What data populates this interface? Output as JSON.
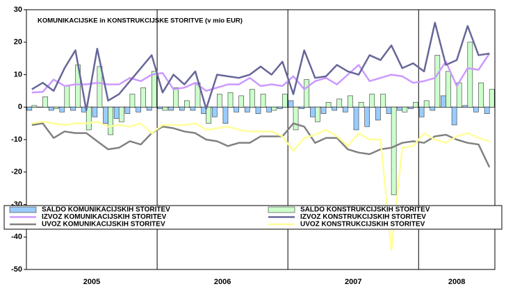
{
  "chart_data": {
    "type": "bar",
    "title": "KOMUNIKACIJSKE in KONSTRUKCIJSKE STORITVE (v mio EUR)",
    "year_labels": [
      "2005",
      "2006",
      "2007",
      "2008"
    ],
    "categories": [
      null,
      null,
      null,
      null,
      null,
      null,
      null,
      null,
      null,
      null,
      null,
      null,
      null,
      null,
      null,
      null,
      null,
      null,
      null,
      null,
      null,
      null,
      null,
      null,
      null,
      null,
      null,
      null,
      null,
      null,
      null,
      null,
      null,
      null,
      null,
      null,
      null,
      null,
      null,
      null,
      null,
      null,
      null
    ],
    "ylim": [
      -50,
      30
    ],
    "yticks": [
      30,
      20,
      10,
      0,
      -10,
      -20,
      -30,
      -40,
      -50
    ],
    "grid": false,
    "series": [
      {
        "name": "SALDO KOMUNIKACIJSKIH STORITEV",
        "type": "bar",
        "color": "#99ccff",
        "values": [
          -1,
          0,
          -1,
          -1.5,
          -1,
          -1.5,
          -3,
          -5,
          -3.5,
          -2,
          -1.5,
          -1,
          -0.5,
          -1,
          -1,
          -1,
          -2,
          -3,
          -5,
          -1.5,
          -1.5,
          -2,
          -1.5,
          -0.5,
          2,
          -0.5,
          -3,
          -2,
          -1,
          -1.5,
          -7,
          -6,
          -4,
          -2,
          -1,
          -0.5,
          -3,
          -1,
          3.5,
          -5.5,
          0.5,
          -1.5,
          -2
        ]
      },
      {
        "name": "SALDO KONSTRUKCIJSKIH STORITEV",
        "type": "bar",
        "color": "#ccffcc",
        "values": [
          0.5,
          3.2,
          -0.5,
          6.5,
          13,
          -7,
          12.5,
          -8.5,
          -4.5,
          4,
          6,
          11,
          -1,
          6,
          2,
          7.5,
          -5,
          4,
          4.5,
          3.5,
          5.5,
          4,
          -1,
          4,
          -7,
          8.5,
          -4.5,
          1.5,
          2.5,
          3.5,
          1.5,
          4,
          4,
          -27,
          -1.5,
          1.5,
          2,
          16,
          11,
          7.5,
          20,
          7.5,
          5.5
        ]
      },
      {
        "name": "IZVOZ KOMUNIKACIJSKIH STORITEV",
        "type": "line",
        "color": "#cc99ff",
        "values": [
          4.5,
          4.7,
          8.5,
          6.5,
          7,
          7,
          7.5,
          7,
          7,
          9,
          8,
          10,
          10.5,
          5.5,
          6,
          7.5,
          5,
          6,
          7,
          7,
          9,
          6.5,
          7,
          6.5,
          9.5,
          5.5,
          8,
          9,
          7,
          10,
          13,
          8,
          9,
          10,
          9.5,
          7.5,
          8,
          9,
          14,
          6.5,
          12,
          11.5,
          16.5
        ]
      },
      {
        "name": "IZVOZ KONSTRUKCIJSKIH STORITEV",
        "type": "line",
        "color": "#666699",
        "values": [
          5.5,
          7.5,
          5,
          12,
          17.5,
          -1,
          18,
          2,
          4,
          8,
          12,
          16,
          4.5,
          10,
          7,
          11,
          -0.5,
          10,
          9.5,
          9,
          10,
          12.5,
          10,
          14,
          4,
          17.5,
          9,
          9.5,
          13,
          11,
          10,
          16,
          14.5,
          19,
          12,
          13.5,
          11,
          26,
          13,
          14.5,
          25,
          16,
          16.5
        ]
      },
      {
        "name": "UVOZ KOMUNIKACIJSKIH STORITEV",
        "type": "line",
        "color": "#808080",
        "values": [
          -5.5,
          -5,
          -9.5,
          -7.5,
          -8,
          -8,
          -10.5,
          -13,
          -12.5,
          -10.5,
          -11.5,
          -8,
          -6,
          -6.5,
          -7.5,
          -8,
          -10,
          -10.5,
          -12,
          -11,
          -11,
          -9,
          -9,
          -9,
          -5,
          -6,
          -11,
          -9.5,
          -9.5,
          -13,
          -14,
          -14.5,
          -13,
          -12.5,
          -11,
          -10.5,
          -11,
          -9,
          -8.5,
          -10,
          -11,
          -11.5,
          -18.5
        ]
      },
      {
        "name": "UVOZ KONSTRUKCIJSKIH STORITEV",
        "type": "line",
        "color": "#ffff99",
        "values": [
          -5,
          -4.5,
          -5,
          -5.5,
          -5,
          -5,
          -4.5,
          -6,
          -5.5,
          -6,
          -5,
          -8,
          -5.5,
          -5.5,
          -5.5,
          -5,
          -7,
          -6.5,
          -6,
          -7,
          -7.5,
          -7.5,
          -7.5,
          -9,
          -13.5,
          -9.5,
          -8.5,
          -7,
          -9,
          -12,
          -8,
          -10,
          -10,
          -44,
          -12.5,
          -12,
          -8,
          -10,
          -11,
          -9,
          -8,
          -9.5,
          -10.5
        ]
      }
    ]
  }
}
